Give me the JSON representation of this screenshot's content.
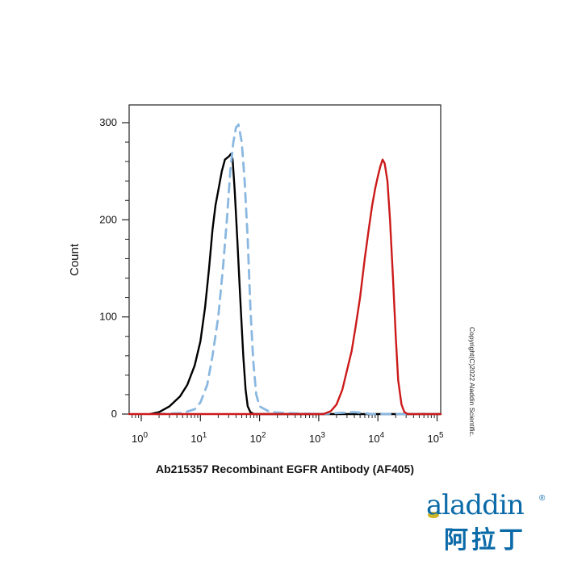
{
  "chart_data": {
    "type": "line",
    "title": "",
    "xlabel": "Ab215357 Recombinant EGFR Antibody (AF405)",
    "ylabel": "Count",
    "x_scale": "log",
    "xlim": [
      0.5,
      120000
    ],
    "ylim": [
      0,
      300
    ],
    "x_ticks": [
      {
        "value": 1,
        "base": "10",
        "exp": "0"
      },
      {
        "value": 10,
        "base": "10",
        "exp": "1"
      },
      {
        "value": 100,
        "base": "10",
        "exp": "2"
      },
      {
        "value": 1000,
        "base": "10",
        "exp": "3"
      },
      {
        "value": 10000,
        "base": "10",
        "exp": "4"
      },
      {
        "value": 100000,
        "base": "10",
        "exp": "5"
      }
    ],
    "y_ticks": [
      0,
      100,
      200,
      300
    ],
    "series": [
      {
        "color": "#000000",
        "style": "solid",
        "points": [
          [
            1.4,
            0
          ],
          [
            2,
            2
          ],
          [
            3,
            8
          ],
          [
            4.5,
            18
          ],
          [
            6,
            30
          ],
          [
            8,
            50
          ],
          [
            10,
            75
          ],
          [
            12,
            110
          ],
          [
            14,
            150
          ],
          [
            16,
            190
          ],
          [
            18,
            215
          ],
          [
            20,
            230
          ],
          [
            23,
            250
          ],
          [
            26,
            262
          ],
          [
            30,
            265
          ],
          [
            33,
            268
          ],
          [
            35,
            262
          ],
          [
            38,
            230
          ],
          [
            42,
            180
          ],
          [
            47,
            120
          ],
          [
            53,
            60
          ],
          [
            58,
            25
          ],
          [
            63,
            8
          ],
          [
            70,
            2
          ],
          [
            80,
            0
          ],
          [
            120000,
            0
          ]
        ]
      },
      {
        "color": "#8ab8e0",
        "style": "dashed",
        "points": [
          [
            1.8,
            0
          ],
          [
            5,
            1
          ],
          [
            8,
            5
          ],
          [
            10,
            12
          ],
          [
            13,
            30
          ],
          [
            16,
            60
          ],
          [
            20,
            100
          ],
          [
            24,
            150
          ],
          [
            28,
            200
          ],
          [
            32,
            250
          ],
          [
            36,
            280
          ],
          [
            40,
            295
          ],
          [
            44,
            298
          ],
          [
            50,
            280
          ],
          [
            56,
            240
          ],
          [
            63,
            180
          ],
          [
            70,
            110
          ],
          [
            78,
            55
          ],
          [
            88,
            20
          ],
          [
            100,
            8
          ],
          [
            150,
            2
          ],
          [
            300,
            1
          ],
          [
            1000,
            0
          ],
          [
            4000,
            2
          ],
          [
            8000,
            0
          ],
          [
            30000,
            0
          ],
          [
            120000,
            0
          ]
        ]
      },
      {
        "color": "#cc1a1a",
        "style": "solid",
        "points": [
          [
            0.6,
            0
          ],
          [
            1200,
            0
          ],
          [
            1600,
            3
          ],
          [
            2000,
            10
          ],
          [
            2500,
            25
          ],
          [
            3000,
            45
          ],
          [
            3600,
            65
          ],
          [
            4200,
            90
          ],
          [
            5000,
            120
          ],
          [
            6000,
            160
          ],
          [
            7000,
            190
          ],
          [
            8000,
            215
          ],
          [
            9000,
            232
          ],
          [
            10000,
            245
          ],
          [
            11000,
            255
          ],
          [
            12000,
            262
          ],
          [
            13000,
            258
          ],
          [
            14500,
            240
          ],
          [
            16000,
            200
          ],
          [
            18000,
            140
          ],
          [
            20000,
            80
          ],
          [
            22000,
            35
          ],
          [
            25000,
            10
          ],
          [
            28000,
            2
          ],
          [
            32000,
            0
          ],
          [
            120000,
            0
          ]
        ]
      }
    ],
    "grid": false,
    "legend": "none"
  },
  "watermark": {
    "copyright": "Copyright(C)2022 Aladdin Scientific.",
    "logo_word": "aladdin",
    "logo_reg": "®",
    "logo_cn": "阿拉丁"
  }
}
